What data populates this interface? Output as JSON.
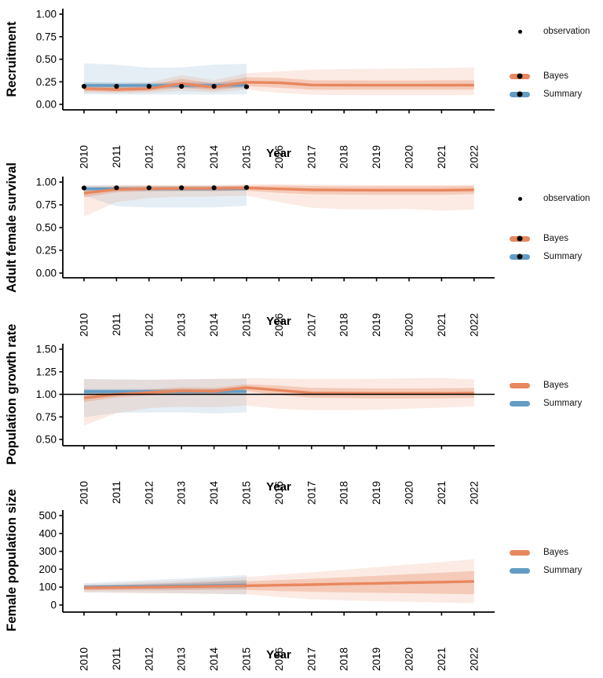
{
  "figure_title": "",
  "xlabel": "Year",
  "colors": {
    "bayes": "#E8875F",
    "summary": "#639CC5",
    "observation": "#000000",
    "axis": "#000000",
    "hline": "#000000"
  },
  "legend_labels": {
    "observation": "observation",
    "bayes": "Bayes",
    "summary": "Summary"
  },
  "chart_data": [
    {
      "type": "line",
      "ylabel": "Recruitment",
      "xlabel": "Year",
      "ylim": [
        0,
        1
      ],
      "yticks": [
        0,
        0.25,
        0.5,
        0.75,
        1
      ],
      "ytick_labels": [
        "0.00",
        "0.25",
        "0.50",
        "0.75",
        "1.00"
      ],
      "xticks": [
        2010,
        2011,
        2012,
        2013,
        2014,
        2015,
        2016,
        2017,
        2018,
        2019,
        2020,
        2021,
        2022
      ],
      "hline": null,
      "series": [
        {
          "name": "Summary",
          "color_key": "summary",
          "x": [
            2010,
            2011,
            2012,
            2013,
            2014,
            2015
          ],
          "line": [
            0.21,
            0.21,
            0.21,
            0.21,
            0.21,
            0.215
          ],
          "inner_lo": [
            0.18,
            0.178,
            0.177,
            0.18,
            0.178,
            0.182
          ],
          "inner_hi": [
            0.245,
            0.242,
            0.24,
            0.243,
            0.242,
            0.248
          ],
          "outer_lo": [
            0.112,
            0.11,
            0.108,
            0.11,
            0.108,
            0.112
          ],
          "outer_hi": [
            0.455,
            0.44,
            0.405,
            0.41,
            0.44,
            0.45
          ]
        },
        {
          "name": "Bayes",
          "color_key": "bayes",
          "x": [
            2010,
            2011,
            2012,
            2013,
            2014,
            2015,
            2016,
            2017,
            2018,
            2019,
            2020,
            2021,
            2022
          ],
          "line": [
            0.175,
            0.165,
            0.175,
            0.23,
            0.19,
            0.245,
            0.24,
            0.215,
            0.213,
            0.212,
            0.212,
            0.212,
            0.213
          ],
          "inner_lo": [
            0.145,
            0.138,
            0.145,
            0.185,
            0.155,
            0.2,
            0.185,
            0.163,
            0.162,
            0.162,
            0.162,
            0.162,
            0.163
          ],
          "inner_hi": [
            0.205,
            0.198,
            0.21,
            0.285,
            0.232,
            0.3,
            0.295,
            0.268,
            0.265,
            0.264,
            0.264,
            0.265,
            0.268
          ],
          "outer_lo": [
            0.128,
            0.122,
            0.126,
            0.15,
            0.132,
            0.162,
            0.128,
            0.108,
            0.102,
            0.1,
            0.1,
            0.1,
            0.102
          ],
          "outer_hi": [
            0.235,
            0.228,
            0.242,
            0.325,
            0.268,
            0.345,
            0.365,
            0.385,
            0.39,
            0.395,
            0.398,
            0.402,
            0.41
          ]
        }
      ],
      "observations": {
        "x": [
          2010,
          2011,
          2012,
          2013,
          2014,
          2015
        ],
        "values": [
          0.2,
          0.2,
          0.2,
          0.2,
          0.2,
          0.195
        ]
      },
      "legend": [
        {
          "label": "observation",
          "type": "point"
        },
        {
          "label": "Bayes",
          "type": "line-point",
          "color_key": "bayes"
        },
        {
          "label": "Summary",
          "type": "line-point",
          "color_key": "summary"
        }
      ]
    },
    {
      "type": "line",
      "ylabel": "Adult female survival",
      "xlabel": "Year",
      "ylim": [
        0,
        1
      ],
      "yticks": [
        0,
        0.25,
        0.5,
        0.75,
        1
      ],
      "ytick_labels": [
        "0.00",
        "0.25",
        "0.50",
        "0.75",
        "1.00"
      ],
      "xticks": [
        2010,
        2011,
        2012,
        2013,
        2014,
        2015,
        2016,
        2017,
        2018,
        2019,
        2020,
        2021,
        2022
      ],
      "hline": null,
      "series": [
        {
          "name": "Summary",
          "color_key": "summary",
          "x": [
            2010,
            2011,
            2012,
            2013,
            2014,
            2015
          ],
          "line": [
            0.925,
            0.925,
            0.925,
            0.925,
            0.925,
            0.928
          ],
          "inner_lo": [
            0.9,
            0.902,
            0.902,
            0.902,
            0.902,
            0.905
          ],
          "inner_hi": [
            0.95,
            0.95,
            0.95,
            0.95,
            0.95,
            0.952
          ],
          "outer_lo": [
            0.85,
            0.735,
            0.72,
            0.72,
            0.722,
            0.74
          ],
          "outer_hi": [
            0.962,
            0.962,
            0.962,
            0.962,
            0.962,
            0.965
          ]
        },
        {
          "name": "Bayes",
          "color_key": "bayes",
          "x": [
            2010,
            2011,
            2012,
            2013,
            2014,
            2015,
            2016,
            2017,
            2018,
            2019,
            2020,
            2021,
            2022
          ],
          "line": [
            0.878,
            0.92,
            0.928,
            0.93,
            0.93,
            0.935,
            0.925,
            0.915,
            0.912,
            0.91,
            0.91,
            0.91,
            0.915
          ],
          "inner_lo": [
            0.832,
            0.888,
            0.9,
            0.902,
            0.902,
            0.905,
            0.882,
            0.866,
            0.862,
            0.86,
            0.86,
            0.86,
            0.868
          ],
          "inner_hi": [
            0.94,
            0.952,
            0.955,
            0.955,
            0.955,
            0.96,
            0.962,
            0.957,
            0.955,
            0.954,
            0.954,
            0.955,
            0.958
          ],
          "outer_lo": [
            0.62,
            0.78,
            0.825,
            0.838,
            0.842,
            0.85,
            0.78,
            0.718,
            0.702,
            0.7,
            0.705,
            0.685,
            0.7
          ],
          "outer_hi": [
            0.965,
            0.968,
            0.968,
            0.968,
            0.968,
            0.975,
            0.978,
            0.972,
            0.97,
            0.968,
            0.968,
            0.968,
            0.97
          ]
        }
      ],
      "observations": {
        "x": [
          2010,
          2011,
          2012,
          2013,
          2014,
          2015
        ],
        "values": [
          0.935,
          0.937,
          0.937,
          0.937,
          0.937,
          0.94
        ]
      },
      "legend": [
        {
          "label": "observation",
          "type": "point"
        },
        {
          "label": "Bayes",
          "type": "line-point",
          "color_key": "bayes"
        },
        {
          "label": "Summary",
          "type": "line-point",
          "color_key": "summary"
        }
      ]
    },
    {
      "type": "line",
      "ylabel": "Population growth rate",
      "xlabel": "Year",
      "ylim": [
        0.5,
        1.5
      ],
      "yticks": [
        0.5,
        0.75,
        1,
        1.25,
        1.5
      ],
      "ytick_labels": [
        "0.50",
        "0.75",
        "1.00",
        "1.25",
        "1.50"
      ],
      "xticks": [
        2010,
        2011,
        2012,
        2013,
        2014,
        2015,
        2016,
        2017,
        2018,
        2019,
        2020,
        2021,
        2022
      ],
      "hline": 1.0,
      "series": [
        {
          "name": "Summary",
          "color_key": "summary",
          "x": [
            2010,
            2011,
            2012,
            2013,
            2014,
            2015
          ],
          "line": [
            1.03,
            1.03,
            1.03,
            1.03,
            1.03,
            1.032
          ],
          "inner_lo": [
            0.995,
            0.995,
            0.995,
            0.995,
            0.995,
            0.998
          ],
          "inner_hi": [
            1.06,
            1.06,
            1.058,
            1.06,
            1.06,
            1.062
          ],
          "outer_lo": [
            0.745,
            0.795,
            0.8,
            0.8,
            0.788,
            0.8
          ],
          "outer_hi": [
            1.17,
            1.165,
            1.16,
            1.165,
            1.17,
            1.17
          ]
        },
        {
          "name": "Bayes",
          "color_key": "bayes",
          "x": [
            2010,
            2011,
            2012,
            2013,
            2014,
            2015,
            2016,
            2017,
            2018,
            2019,
            2020,
            2021,
            2022
          ],
          "line": [
            0.96,
            1.0,
            1.02,
            1.04,
            1.035,
            1.075,
            1.045,
            1.015,
            1.012,
            1.01,
            1.01,
            1.01,
            1.012
          ],
          "inner_lo": [
            0.915,
            0.965,
            0.988,
            1.002,
            0.995,
            1.035,
            0.992,
            0.962,
            0.958,
            0.955,
            0.955,
            0.956,
            0.96
          ],
          "inner_hi": [
            0.995,
            1.035,
            1.055,
            1.078,
            1.072,
            1.11,
            1.098,
            1.072,
            1.068,
            1.065,
            1.065,
            1.066,
            1.07
          ],
          "outer_lo": [
            0.655,
            0.79,
            0.848,
            0.862,
            0.855,
            0.875,
            0.84,
            0.825,
            0.825,
            0.83,
            0.84,
            0.852,
            0.865
          ],
          "outer_hi": [
            1.17,
            1.165,
            1.162,
            1.17,
            1.172,
            1.18,
            1.175,
            1.17,
            1.17,
            1.172,
            1.178,
            1.18,
            1.165
          ]
        }
      ],
      "observations": null,
      "legend": [
        {
          "label": "Bayes",
          "type": "line",
          "color_key": "bayes"
        },
        {
          "label": "Summary",
          "type": "line",
          "color_key": "summary"
        }
      ]
    },
    {
      "type": "line",
      "ylabel": "Female population size",
      "xlabel": "Year",
      "ylim": [
        0,
        500
      ],
      "yticks": [
        0,
        100,
        200,
        300,
        400,
        500
      ],
      "ytick_labels": [
        "0",
        "100",
        "200",
        "300",
        "400",
        "500"
      ],
      "xticks": [
        2010,
        2011,
        2012,
        2013,
        2014,
        2015,
        2016,
        2017,
        2018,
        2019,
        2020,
        2021,
        2022
      ],
      "hline": null,
      "series": [
        {
          "name": "Summary",
          "color_key": "summary",
          "x": [
            2010,
            2011,
            2012,
            2013,
            2014,
            2015
          ],
          "line": [
            100,
            102,
            104,
            106,
            109,
            112
          ],
          "inner_lo": [
            88,
            89,
            90,
            91,
            92,
            93
          ],
          "inner_hi": [
            110,
            114,
            119,
            125,
            132,
            140
          ],
          "outer_lo": [
            72,
            70,
            68,
            66,
            63,
            58
          ],
          "outer_hi": [
            122,
            130,
            139,
            148,
            158,
            168
          ]
        },
        {
          "name": "Bayes",
          "color_key": "bayes",
          "x": [
            2010,
            2011,
            2012,
            2013,
            2014,
            2015,
            2016,
            2017,
            2018,
            2019,
            2020,
            2021,
            2022
          ],
          "line": [
            96,
            98,
            100,
            102,
            105,
            108,
            111,
            114,
            118,
            121,
            125,
            128,
            132
          ],
          "inner_lo": [
            82,
            82,
            83,
            83,
            84,
            85,
            78,
            74,
            71,
            68,
            66,
            63,
            60
          ],
          "inner_hi": [
            108,
            112,
            116,
            121,
            127,
            133,
            140,
            147,
            155,
            163,
            172,
            181,
            190
          ],
          "outer_lo": [
            70,
            68,
            66,
            64,
            62,
            60,
            45,
            32,
            26,
            22,
            18,
            14,
            10
          ],
          "outer_hi": [
            116,
            122,
            129,
            137,
            146,
            156,
            170,
            183,
            197,
            212,
            226,
            241,
            256
          ]
        }
      ],
      "observations": null,
      "legend": [
        {
          "label": "Bayes",
          "type": "line",
          "color_key": "bayes"
        },
        {
          "label": "Summary",
          "type": "line",
          "color_key": "summary"
        }
      ]
    }
  ]
}
